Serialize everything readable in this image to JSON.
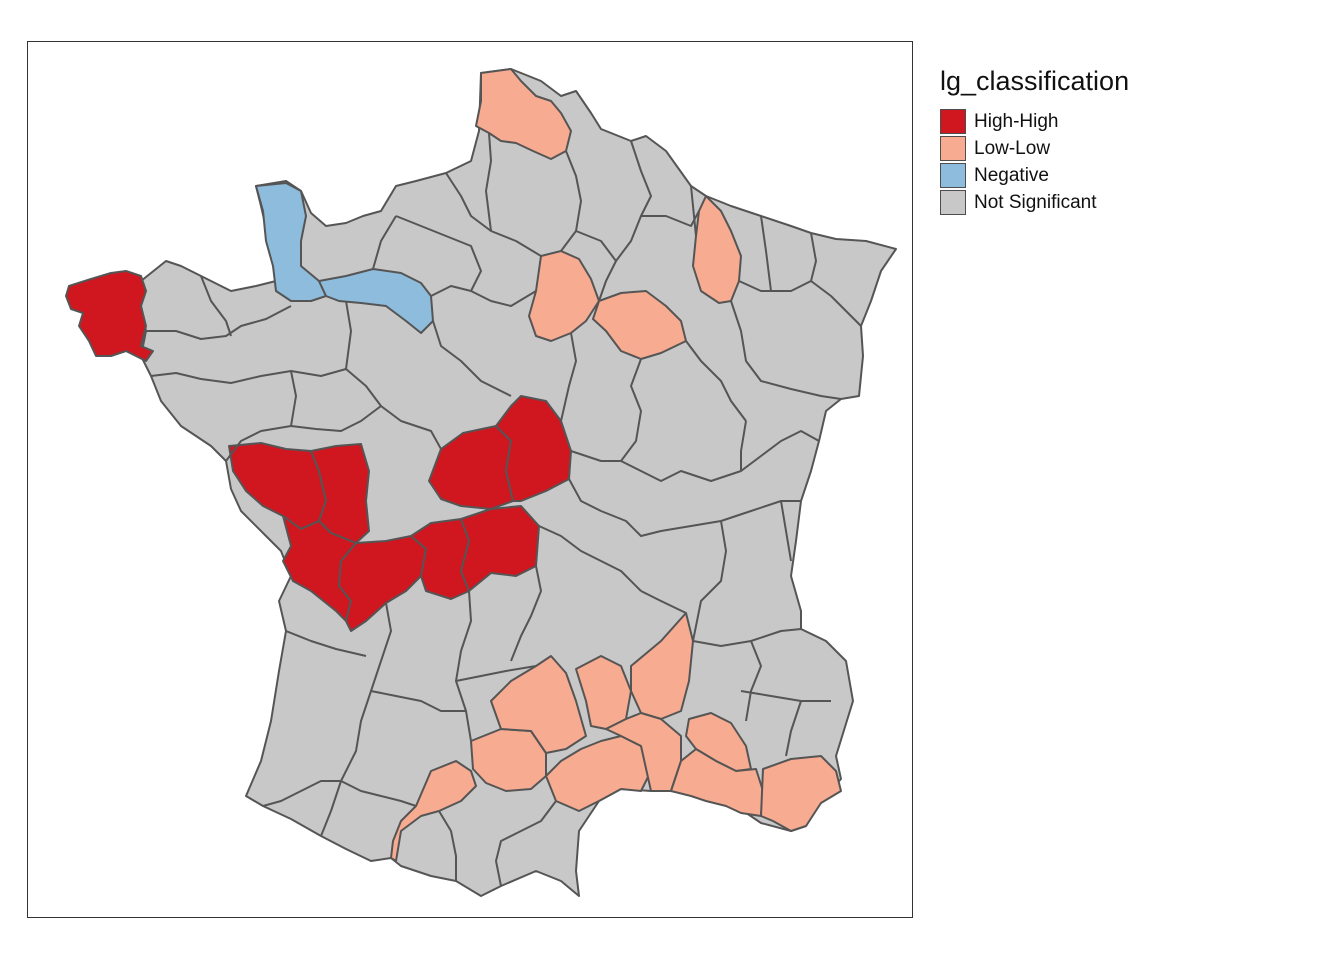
{
  "legend": {
    "title": "lg_classification",
    "items": [
      {
        "label": "High-High",
        "color": "#d0161f"
      },
      {
        "label": "Low-Low",
        "color": "#f7ab91"
      },
      {
        "label": "Negative",
        "color": "#8ebcdc"
      },
      {
        "label": "Not Significant",
        "color": "#c8c8c8"
      }
    ]
  },
  "map": {
    "subject": "France departments",
    "base_color": "#c8c8c8",
    "border_color": "#555555",
    "regions": [
      {
        "name": "Finistere",
        "class": "High-High"
      },
      {
        "name": "Vendee",
        "class": "High-High"
      },
      {
        "name": "Deux-Sevres",
        "class": "High-High"
      },
      {
        "name": "Charente-Maritime",
        "class": "High-High"
      },
      {
        "name": "Charente",
        "class": "High-High"
      },
      {
        "name": "Indre",
        "class": "High-High"
      },
      {
        "name": "Cher",
        "class": "High-High"
      },
      {
        "name": "Haute-Vienne",
        "class": "High-High"
      },
      {
        "name": "Creuse",
        "class": "High-High"
      },
      {
        "name": "Nord",
        "class": "Low-Low"
      },
      {
        "name": "Aube",
        "class": "Low-Low"
      },
      {
        "name": "Yonne",
        "class": "Low-Low"
      },
      {
        "name": "Meuse",
        "class": "Low-Low"
      },
      {
        "name": "Aveyron",
        "class": "Low-Low"
      },
      {
        "name": "Lozere",
        "class": "Low-Low"
      },
      {
        "name": "Ardeche",
        "class": "Low-Low"
      },
      {
        "name": "Gard",
        "class": "Low-Low"
      },
      {
        "name": "Herault",
        "class": "Low-Low"
      },
      {
        "name": "Tarn",
        "class": "Low-Low"
      },
      {
        "name": "Haute-Garonne",
        "class": "Low-Low"
      },
      {
        "name": "Vaucluse",
        "class": "Low-Low"
      },
      {
        "name": "Bouches-du-Rhone",
        "class": "Low-Low"
      },
      {
        "name": "Var",
        "class": "Low-Low"
      },
      {
        "name": "Manche",
        "class": "Negative"
      },
      {
        "name": "Orne",
        "class": "Negative"
      }
    ]
  }
}
